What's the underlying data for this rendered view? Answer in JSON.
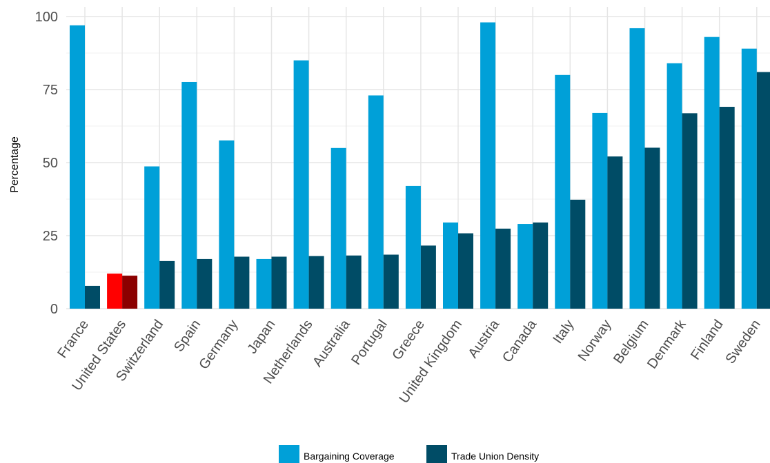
{
  "chart_data": {
    "type": "bar",
    "title": "",
    "xlabel": "",
    "ylabel": "Percentage",
    "ylim": [
      0,
      100
    ],
    "yticks": [
      0,
      25,
      50,
      75,
      100
    ],
    "grid": true,
    "legend_position": "bottom",
    "categories": [
      "France",
      "United States",
      "Switzerland",
      "Spain",
      "Germany",
      "Japan",
      "Netherlands",
      "Australia",
      "Portugal",
      "Greece",
      "United Kingdom",
      "Austria",
      "Canada",
      "Italy",
      "Norway",
      "Belgium",
      "Denmark",
      "Finland",
      "Sweden"
    ],
    "series": [
      {
        "name": "Bargaining Coverage",
        "color": "#00a0d8",
        "values": [
          97,
          12,
          48.7,
          77.6,
          57.6,
          17,
          85,
          55,
          73,
          42,
          29.5,
          98,
          29,
          80,
          67,
          96,
          84,
          93,
          89
        ]
      },
      {
        "name": "Trade Union Density",
        "color": "#004c66",
        "values": [
          7.8,
          11.3,
          16.3,
          17,
          17.8,
          17.8,
          18,
          18.2,
          18.5,
          21.6,
          25.8,
          27.4,
          29.5,
          37.3,
          52.1,
          55.1,
          66.9,
          69.1,
          81
        ]
      }
    ],
    "highlight": {
      "category": "United States",
      "colors": [
        "#ff0000",
        "#8b0000"
      ]
    }
  }
}
